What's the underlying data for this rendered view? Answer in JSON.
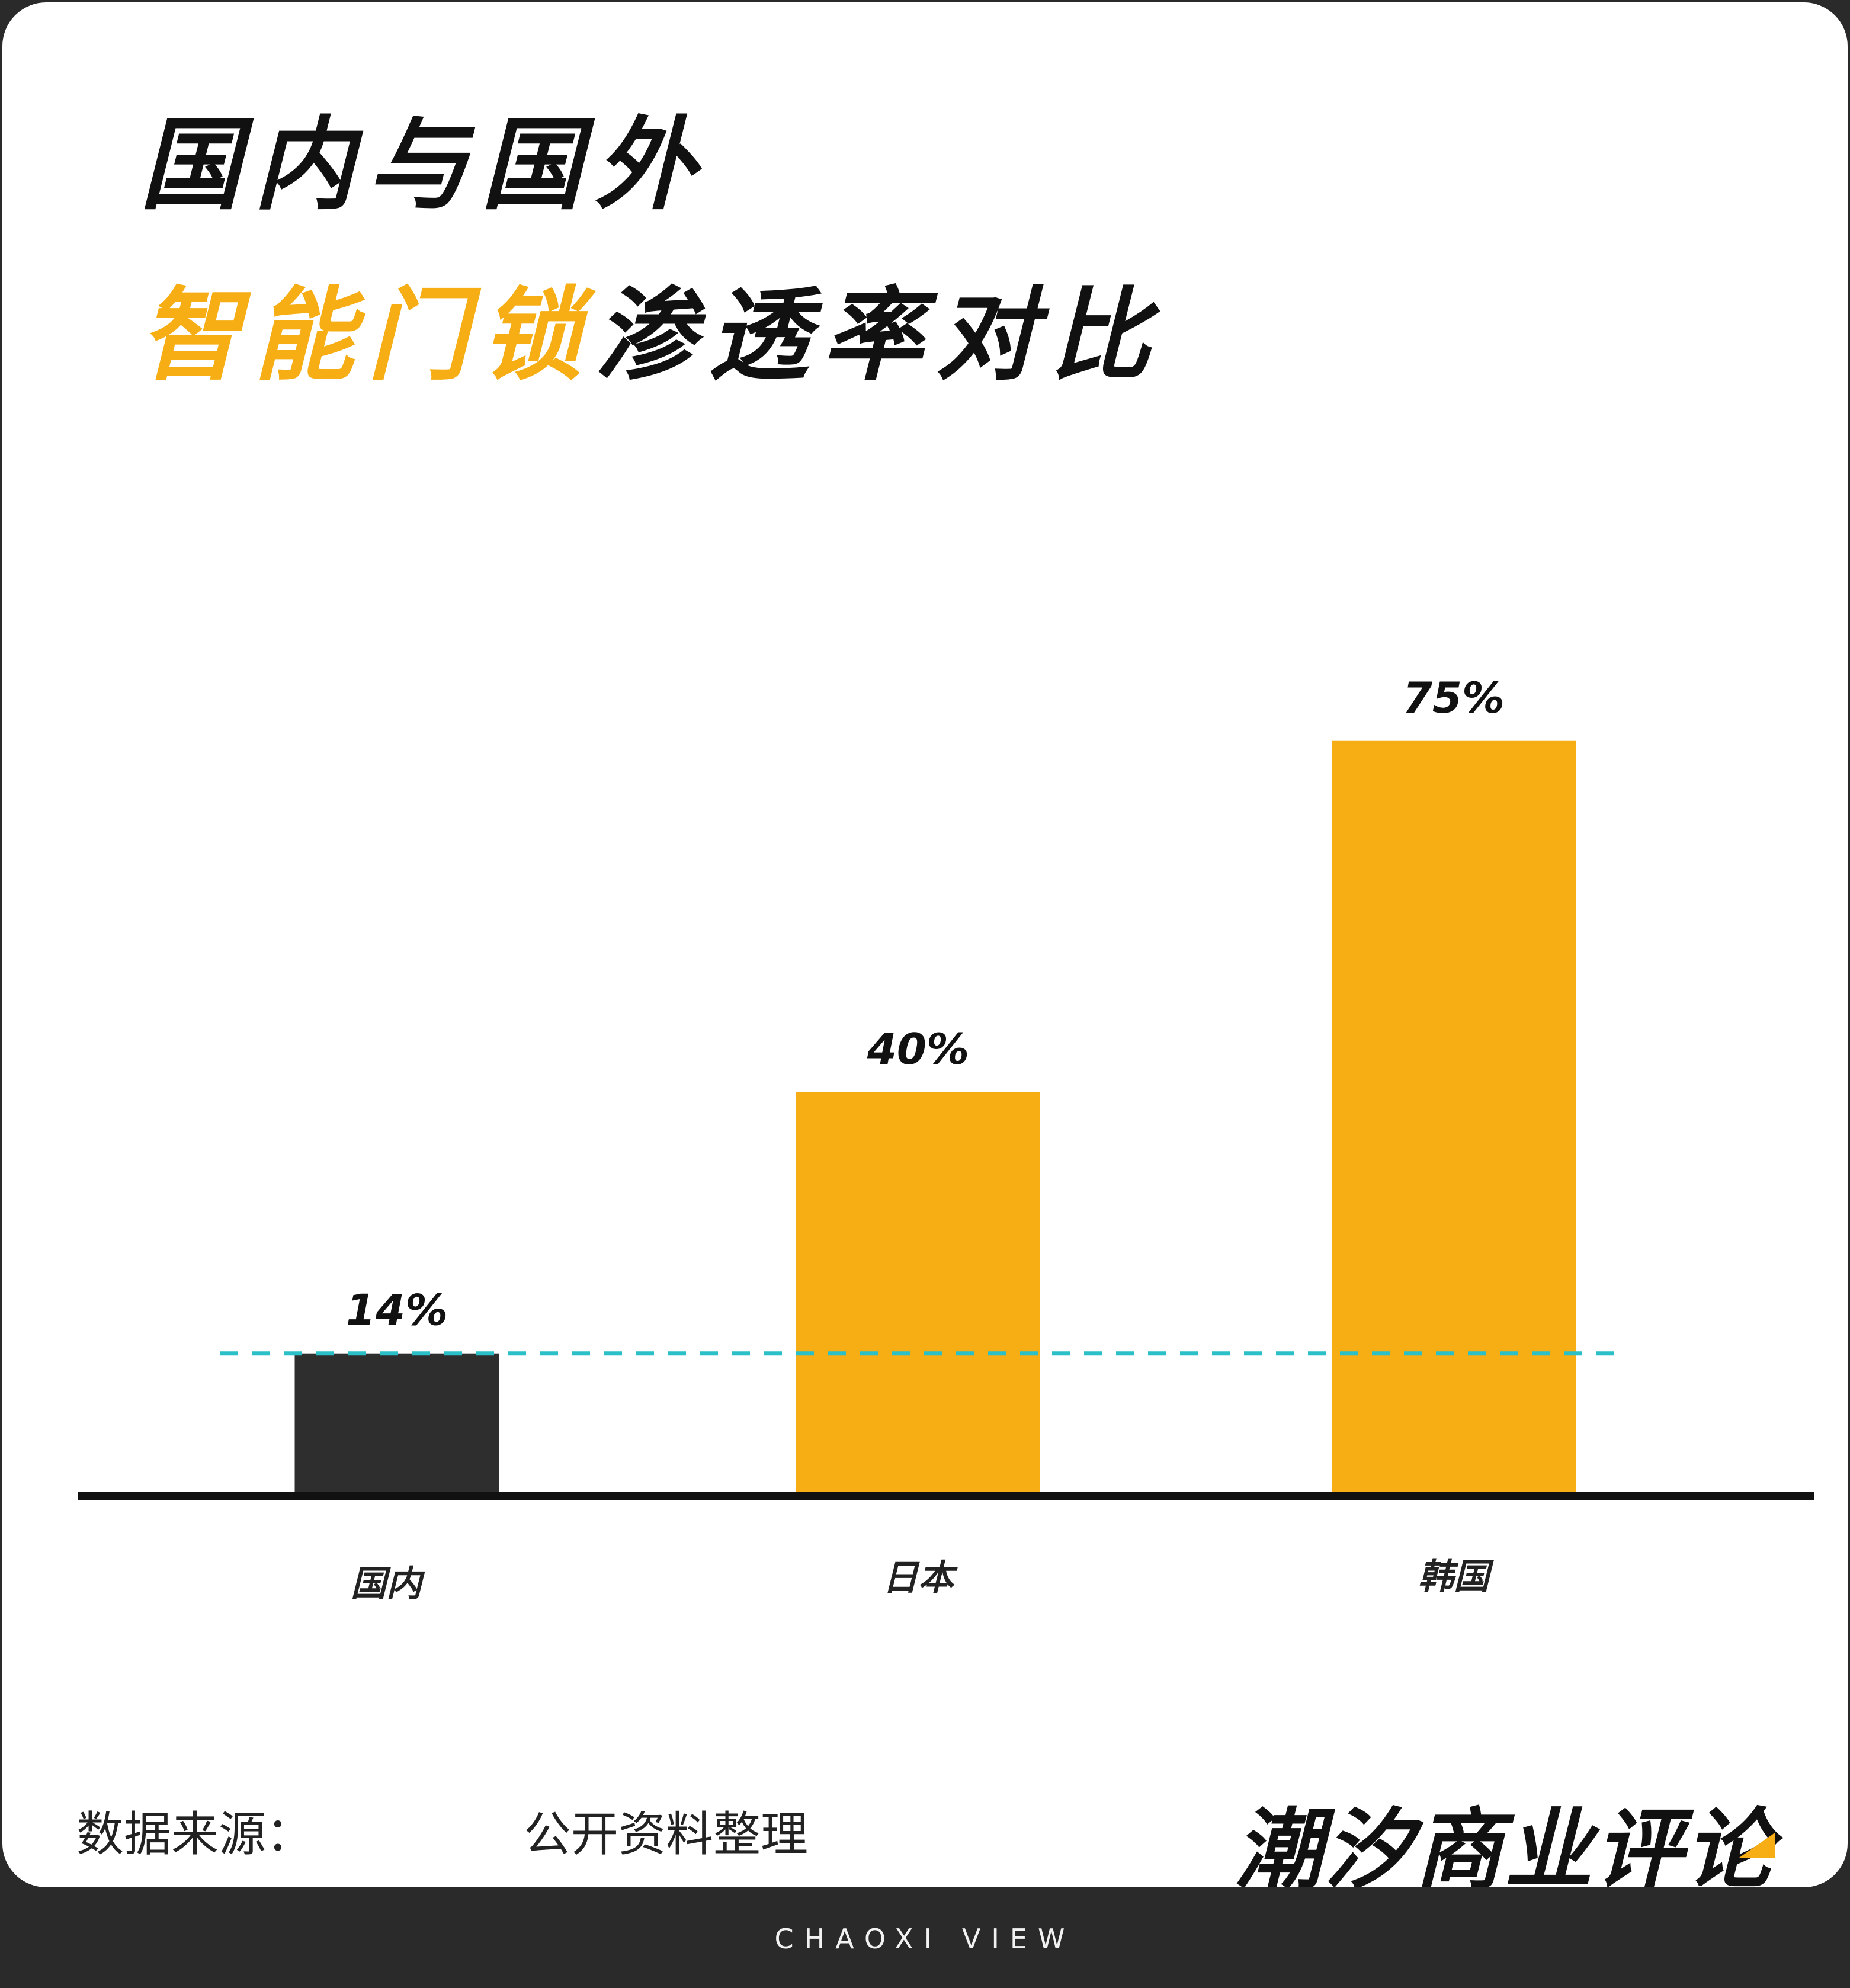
{
  "title": {
    "line1": "国内与国外",
    "line2_highlight": "智能门锁",
    "line2_rest": "渗透率对比"
  },
  "chart_data": {
    "type": "bar",
    "categories": [
      "国内",
      "日本",
      "韩国"
    ],
    "values": [
      14,
      40,
      75
    ],
    "value_labels": [
      "14%",
      "40%",
      "75%"
    ],
    "bar_colors": [
      "#2e2e2e",
      "#f6ae14",
      "#f6ae14"
    ],
    "reference_line": {
      "value": 14,
      "color": "#2bbfc7",
      "style": "dashed"
    },
    "ylim": [
      0,
      100
    ],
    "grid": false,
    "xlabel": "",
    "ylabel": ""
  },
  "source": {
    "label": "数据来源：",
    "value": "公开资料整理"
  },
  "brand": {
    "name": "潮汐商业评论",
    "footer": "CHAOXI VIEW"
  },
  "colors": {
    "accent": "#f6ae14",
    "dark": "#2e2e2e",
    "reference": "#2bbfc7"
  }
}
